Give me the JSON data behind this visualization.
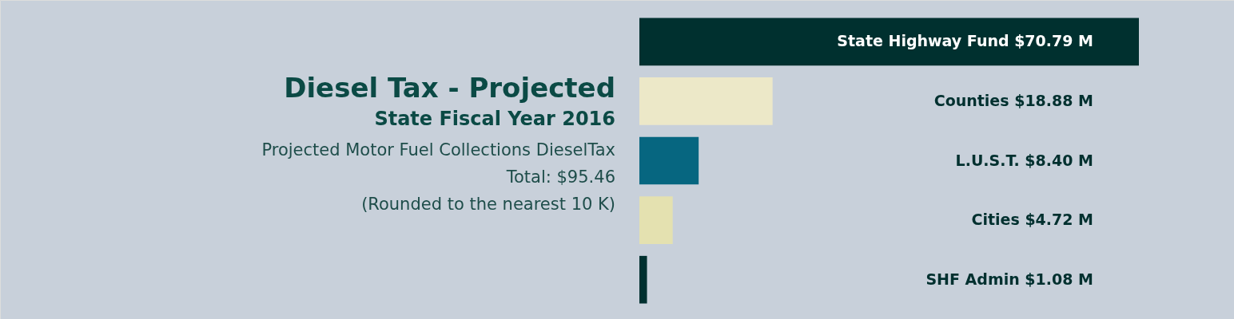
{
  "chart_data": {
    "type": "bar",
    "orientation": "horizontal",
    "title": "Diesel Tax - Projected",
    "subtitle": "State Fiscal Year 2016",
    "annotations": [
      "Projected Motor Fuel Collections DieselTax",
      "Total: $95.46",
      "(Rounded to the nearest 10 K)"
    ],
    "categories": [
      null,
      null,
      null,
      null,
      null
    ],
    "values": [
      70.79,
      18.88,
      8.4,
      4.72,
      1.08
    ],
    "colors": [
      "#00302f",
      "#ece8c8",
      "#066680",
      "#e4e1b0",
      "#00302f"
    ],
    "value_labels": [
      "State Highway Fund  $70.79 M",
      "Counties  $18.88 M",
      "L.U.S.T.  $8.40 M",
      "Cities $4.72 M",
      "SHF Admin  $1.08 M"
    ]
  }
}
